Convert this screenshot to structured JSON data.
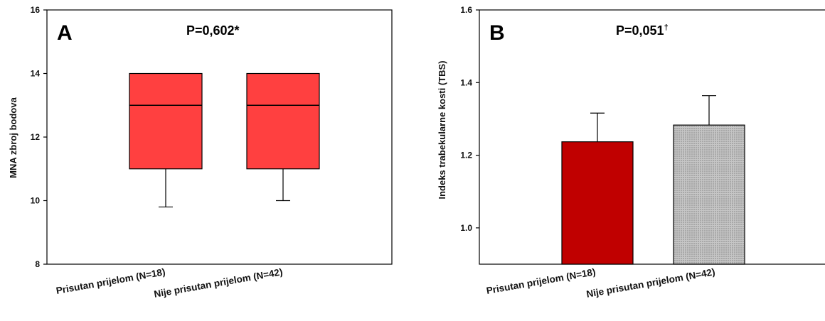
{
  "colors": {
    "box_fill": "#ff4040",
    "bar_a": "#c00000",
    "bar_b": "#c0c0c0",
    "bar_b_dot": "#6a6a6a",
    "stroke": "#000000"
  },
  "chart_data": [
    {
      "type": "box",
      "panel_letter": "A",
      "annotation": "P=0,602*",
      "ylabel": "MNA zbroj bodova",
      "ylim": [
        8,
        16
      ],
      "yticks": [
        "8",
        "10",
        "12",
        "14",
        "16"
      ],
      "categories": [
        "Prisutan prijelom (N=18)",
        "Nije prisutan prijelom (N=42)"
      ],
      "boxes": [
        {
          "whisker_low": 9.8,
          "q1": 11,
          "median": 13,
          "q3": 14,
          "whisker_high": 14
        },
        {
          "whisker_low": 10.0,
          "q1": 11,
          "median": 13,
          "q3": 14,
          "whisker_high": 14
        }
      ],
      "grid": false
    },
    {
      "type": "bar",
      "panel_letter": "B",
      "annotation": "P=0,051",
      "annotation_mark": "†",
      "ylabel": "Indeks trabekularne kosti (TBS)",
      "ylim": [
        0.9,
        1.6
      ],
      "yticks": [
        "1.0",
        "1.2",
        "1.4",
        "1.6"
      ],
      "categories": [
        "Prisutan prijelom (N=18)",
        "Nije prisutan prijelom (N=42)"
      ],
      "values": [
        1.237,
        1.283
      ],
      "error_upper": [
        1.316,
        1.364
      ],
      "grid": false
    }
  ]
}
